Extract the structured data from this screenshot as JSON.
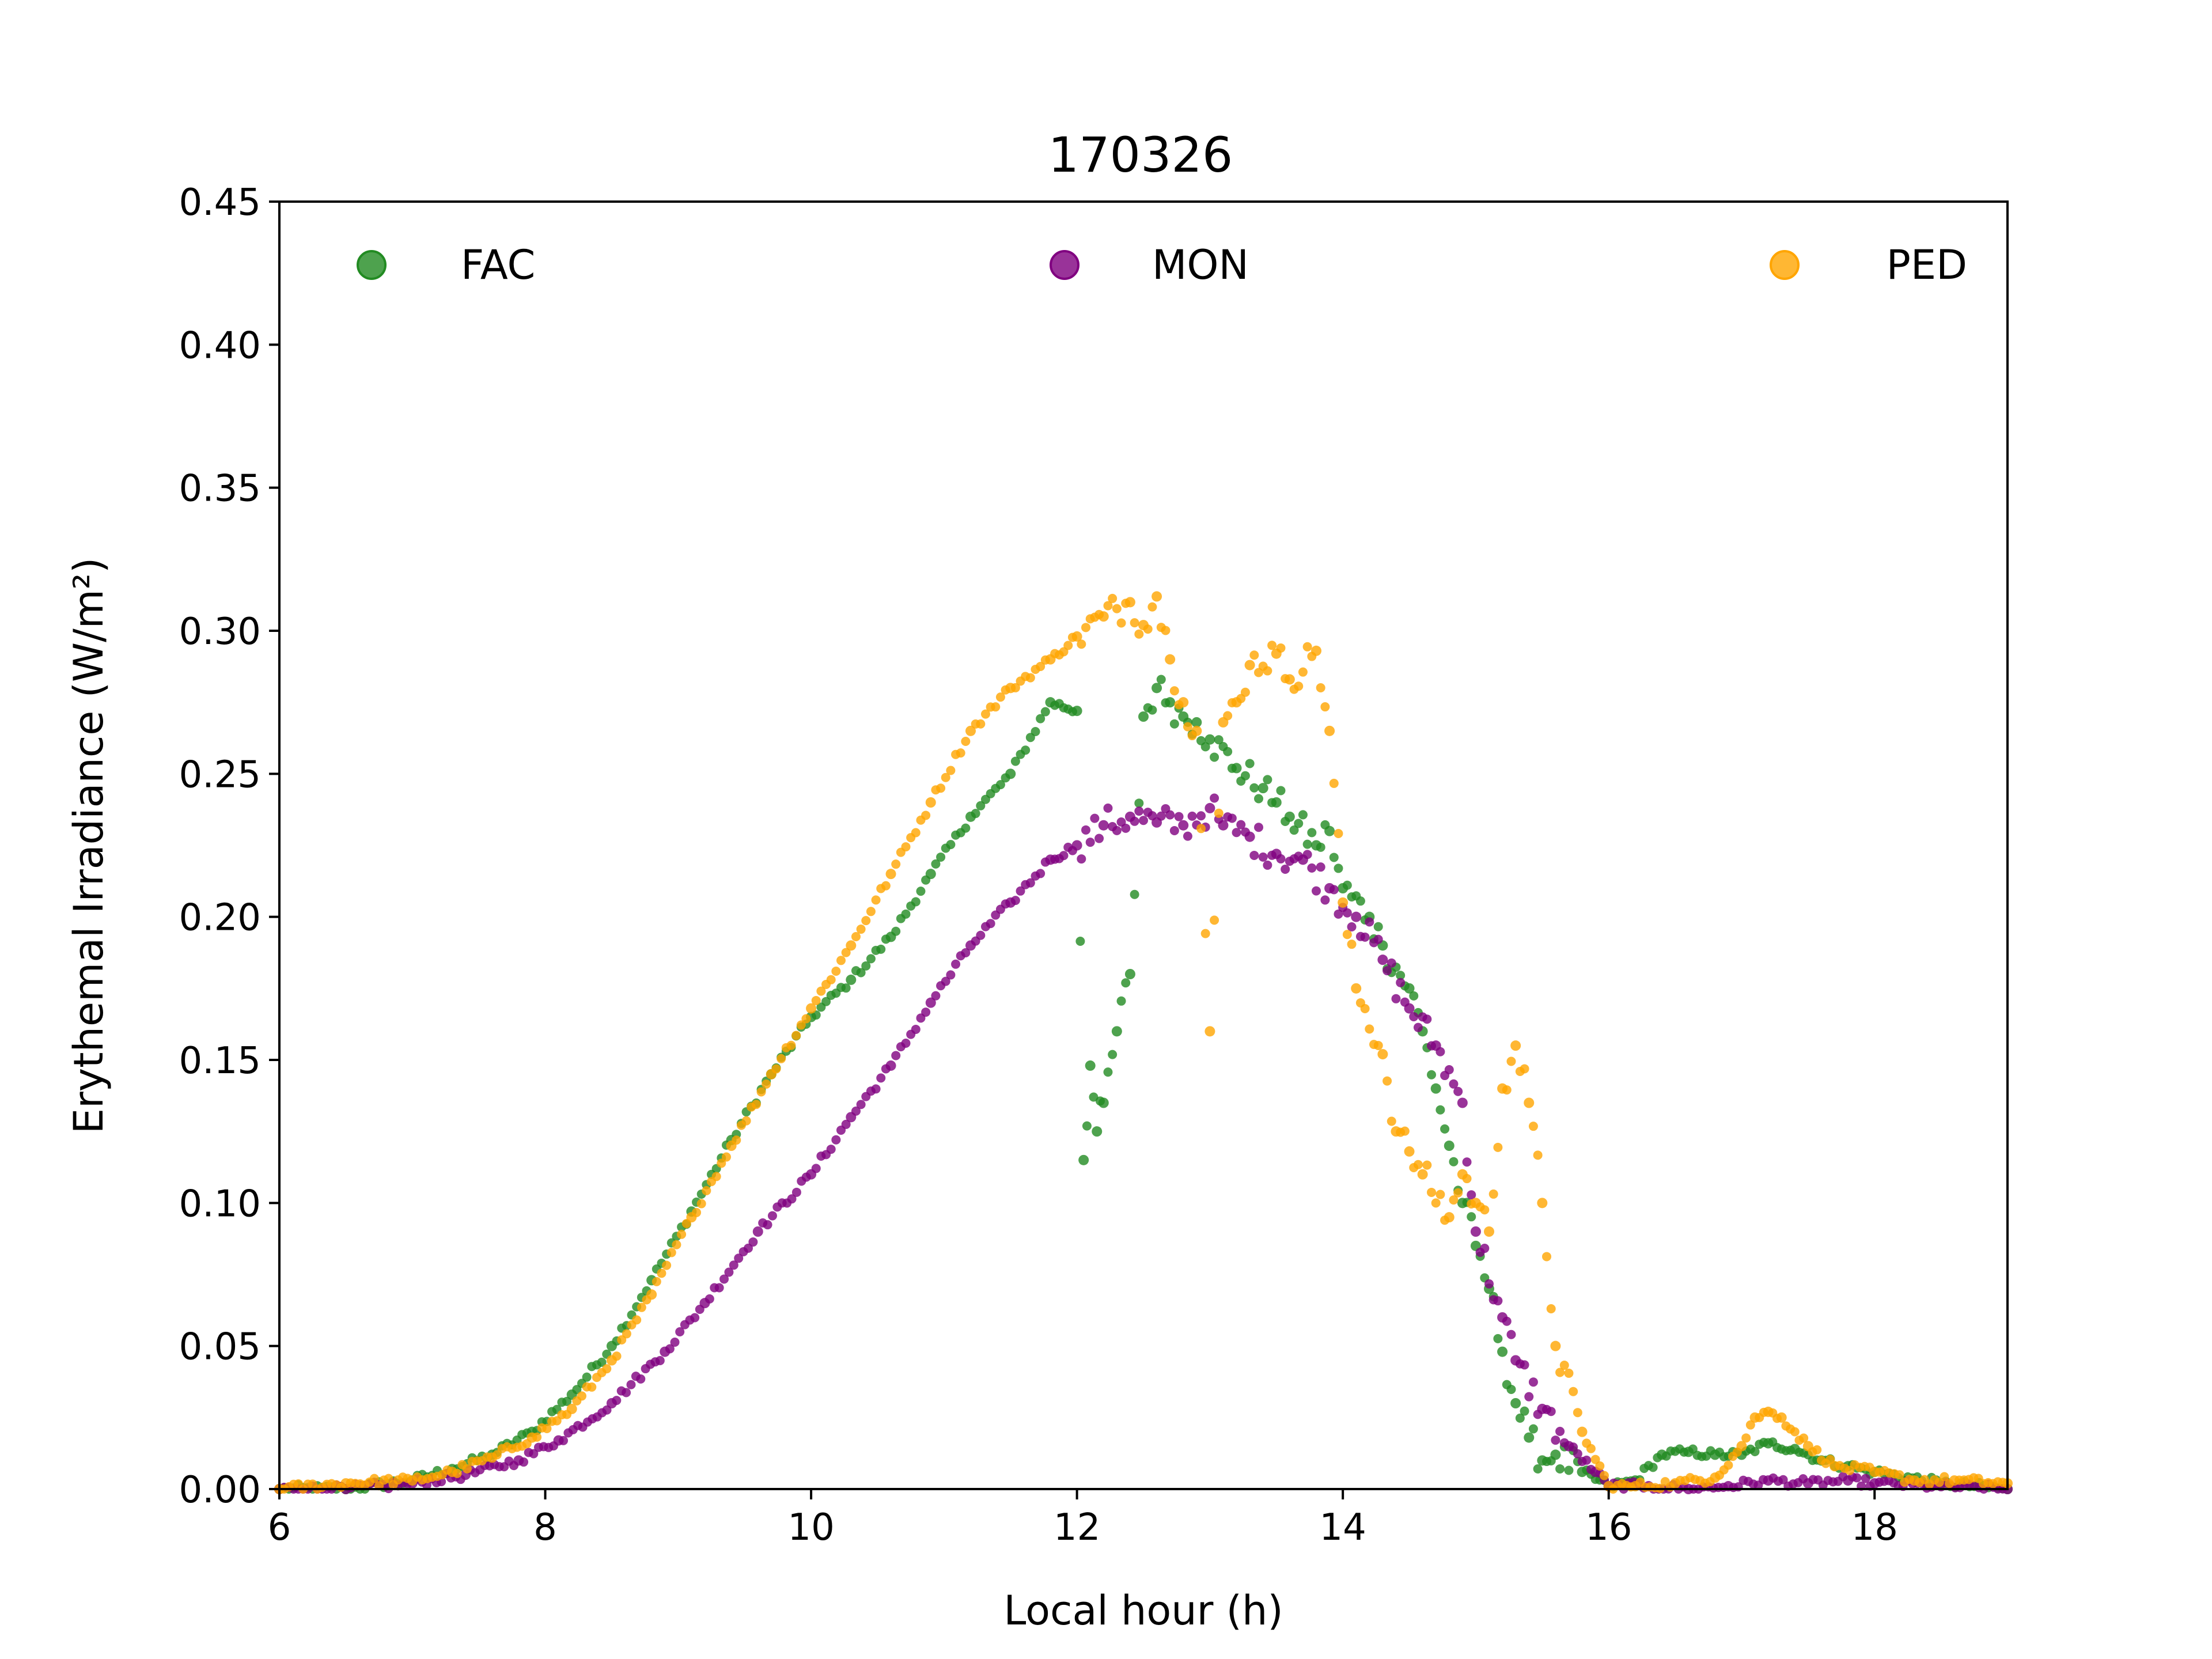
{
  "chart_data": {
    "type": "scatter",
    "title": "170326",
    "xlabel": "Local hour (h)",
    "ylabel": "Erythemal Irradiance (W/m²)",
    "xlim": [
      6,
      19
    ],
    "ylim": [
      0,
      0.45
    ],
    "xticks": [
      6,
      8,
      10,
      12,
      14,
      16,
      18
    ],
    "yticks": [
      0.0,
      0.05,
      0.1,
      0.15,
      0.2,
      0.25,
      0.3,
      0.35,
      0.4,
      0.45
    ],
    "xtick_labels": [
      "6",
      "8",
      "10",
      "12",
      "14",
      "16",
      "18"
    ],
    "ytick_labels": [
      "0.00",
      "0.05",
      "0.10",
      "0.15",
      "0.20",
      "0.25",
      "0.30",
      "0.35",
      "0.40",
      "0.45"
    ],
    "grid": false,
    "legend_position": "top",
    "series": [
      {
        "name": "FAC",
        "color": "#228B22",
        "x": [
          6.0,
          6.5,
          7.0,
          7.3,
          7.6,
          7.9,
          8.2,
          8.5,
          8.8,
          9.1,
          9.4,
          9.7,
          10.0,
          10.3,
          10.6,
          10.9,
          11.2,
          11.5,
          11.8,
          12.0,
          12.05,
          12.1,
          12.15,
          12.2,
          12.3,
          12.4,
          12.5,
          12.6,
          12.7,
          12.8,
          12.9,
          13.0,
          13.2,
          13.4,
          13.5,
          13.6,
          13.8,
          13.9,
          14.0,
          14.2,
          14.3,
          14.5,
          14.6,
          14.7,
          14.8,
          14.9,
          15.0,
          15.1,
          15.2,
          15.3,
          15.4,
          15.5,
          15.6,
          15.8,
          16.0,
          16.2,
          16.4,
          16.6,
          16.8,
          17.0,
          17.2,
          17.4,
          17.6,
          17.8,
          18.0,
          18.5,
          19.0
        ],
        "y": [
          0.0,
          0.0,
          0.003,
          0.007,
          0.012,
          0.02,
          0.033,
          0.05,
          0.073,
          0.097,
          0.122,
          0.145,
          0.165,
          0.178,
          0.193,
          0.215,
          0.235,
          0.25,
          0.275,
          0.272,
          0.115,
          0.148,
          0.125,
          0.135,
          0.16,
          0.18,
          0.27,
          0.28,
          0.275,
          0.27,
          0.268,
          0.262,
          0.252,
          0.245,
          0.24,
          0.235,
          0.225,
          0.23,
          0.21,
          0.2,
          0.19,
          0.175,
          0.16,
          0.14,
          0.12,
          0.1,
          0.085,
          0.07,
          0.048,
          0.03,
          0.018,
          0.01,
          0.012,
          0.006,
          0.001,
          0.003,
          0.012,
          0.013,
          0.012,
          0.012,
          0.016,
          0.014,
          0.01,
          0.008,
          0.006,
          0.002,
          0.0
        ]
      },
      {
        "name": "MON",
        "color": "#800080",
        "x": [
          6.0,
          6.5,
          7.0,
          7.4,
          7.8,
          8.1,
          8.5,
          8.9,
          9.2,
          9.6,
          10.0,
          10.3,
          10.6,
          10.9,
          11.2,
          11.5,
          11.8,
          12.0,
          12.2,
          12.4,
          12.6,
          12.8,
          13.0,
          13.1,
          13.3,
          13.5,
          13.7,
          13.9,
          14.1,
          14.3,
          14.5,
          14.7,
          14.9,
          15.0,
          15.2,
          15.3,
          15.5,
          15.7,
          15.9,
          16.0,
          16.3,
          16.6,
          16.9,
          17.2,
          17.5,
          17.8,
          18.0,
          18.5,
          19.0
        ],
        "y": [
          0.0,
          0.0,
          0.002,
          0.005,
          0.01,
          0.017,
          0.03,
          0.048,
          0.065,
          0.09,
          0.11,
          0.13,
          0.148,
          0.17,
          0.19,
          0.205,
          0.22,
          0.225,
          0.232,
          0.235,
          0.233,
          0.232,
          0.238,
          0.232,
          0.228,
          0.222,
          0.22,
          0.21,
          0.2,
          0.185,
          0.168,
          0.155,
          0.135,
          0.09,
          0.06,
          0.045,
          0.028,
          0.015,
          0.006,
          0.001,
          0.001,
          0.0,
          0.001,
          0.003,
          0.002,
          0.003,
          0.002,
          0.001,
          0.0
        ]
      },
      {
        "name": "PED",
        "color": "#FFA500",
        "x": [
          6.0,
          6.5,
          7.0,
          7.3,
          7.6,
          7.9,
          8.2,
          8.5,
          8.8,
          9.1,
          9.4,
          9.7,
          10.0,
          10.3,
          10.6,
          10.9,
          11.2,
          11.5,
          11.8,
          12.0,
          12.2,
          12.4,
          12.5,
          12.6,
          12.7,
          12.8,
          12.9,
          13.0,
          13.1,
          13.2,
          13.3,
          13.5,
          13.6,
          13.8,
          13.9,
          14.0,
          14.1,
          14.3,
          14.4,
          14.5,
          14.6,
          14.8,
          14.9,
          15.0,
          15.1,
          15.2,
          15.3,
          15.4,
          15.5,
          15.6,
          15.8,
          16.0,
          16.2,
          16.5,
          16.8,
          17.0,
          17.1,
          17.2,
          17.3,
          17.5,
          17.7,
          18.0,
          18.3,
          18.6,
          19.0
        ],
        "y": [
          0.0,
          0.002,
          0.003,
          0.006,
          0.011,
          0.018,
          0.028,
          0.045,
          0.068,
          0.095,
          0.12,
          0.145,
          0.168,
          0.19,
          0.215,
          0.24,
          0.265,
          0.28,
          0.29,
          0.298,
          0.305,
          0.31,
          0.302,
          0.312,
          0.29,
          0.275,
          0.265,
          0.16,
          0.268,
          0.275,
          0.288,
          0.292,
          0.283,
          0.293,
          0.265,
          0.205,
          0.175,
          0.152,
          0.125,
          0.118,
          0.11,
          0.095,
          0.11,
          0.1,
          0.09,
          0.14,
          0.155,
          0.135,
          0.1,
          0.05,
          0.02,
          0.001,
          0.001,
          0.002,
          0.004,
          0.015,
          0.025,
          0.027,
          0.025,
          0.015,
          0.008,
          0.006,
          0.003,
          0.003,
          0.002
        ]
      }
    ]
  }
}
